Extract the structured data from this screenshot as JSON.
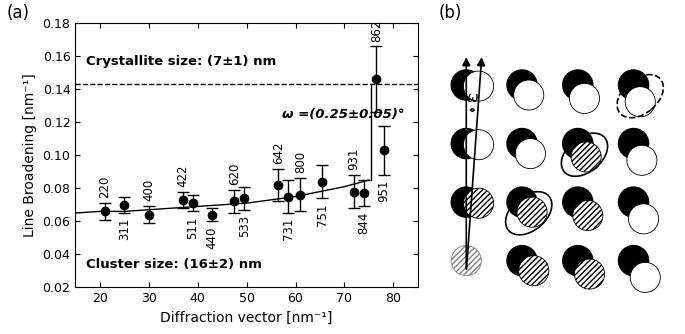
{
  "chart_data": [
    {
      "type": "scatter",
      "panel_label": "(a)",
      "x_label": "Diffraction vector [nm⁻¹]",
      "y_label": "Line Broadening [nm⁻¹]",
      "xlim": [
        15,
        85
      ],
      "xticks": [
        20,
        30,
        40,
        50,
        60,
        70,
        80
      ],
      "ylim": [
        0.02,
        0.18
      ],
      "yticks": [
        0.02,
        0.04,
        0.06,
        0.08,
        {
          "value": 0.1,
          "label": "0.10"
        },
        0.12,
        0.14,
        0.16,
        0.18
      ],
      "series": [
        {
          "type": "scatter",
          "color": "#000000",
          "marker": "circle",
          "x": [
            21,
            25,
            30,
            37,
            39,
            43,
            47.5,
            49.5,
            56.5,
            58.5,
            61,
            65.5,
            72,
            74,
            76.5,
            78
          ],
          "values": [
            0.066,
            0.07,
            0.064,
            0.073,
            0.071,
            0.064,
            0.072,
            0.074,
            0.082,
            0.075,
            0.076,
            0.084,
            0.078,
            0.077,
            0.146,
            0.103
          ],
          "errors": [
            0.005,
            0.005,
            0.005,
            0.005,
            0.005,
            0.004,
            0.007,
            0.007,
            0.01,
            0.01,
            0.01,
            0.01,
            0.01,
            0.008,
            0.02,
            0.015
          ],
          "point_labels": [
            "220",
            "311",
            "400",
            "422",
            "511",
            "440",
            "620",
            "533",
            "642",
            "731",
            "800",
            "751",
            "931",
            "844",
            "862",
            "951"
          ]
        },
        {
          "type": "line",
          "color": "#000000",
          "line_style": "solid",
          "x": [
            15,
            20,
            25,
            30,
            35,
            40,
            45,
            50,
            55,
            60,
            65,
            70,
            75
          ],
          "values": [
            0.065,
            0.066,
            0.066,
            0.067,
            0.068,
            0.069,
            0.07,
            0.071,
            0.073,
            0.075,
            0.078,
            0.081,
            0.085
          ]
        },
        {
          "type": "line",
          "color": "#000000",
          "line_style": "dashed",
          "x": [
            15,
            85
          ],
          "values": [
            0.143,
            0.143
          ]
        },
        {
          "type": "line",
          "color": "#000000",
          "line_style": "solid",
          "x": [
            75.5,
            75.5
          ],
          "values": [
            0.085,
            0.143
          ]
        }
      ],
      "annotations": [
        "Crystallite size: (7±1) nm",
        "Cluster size: (16±2) nm",
        "ω =(0.25±0.05)°"
      ]
    }
  ],
  "diagram": {
    "panel_label": "(b)",
    "angle_label": "ω"
  }
}
